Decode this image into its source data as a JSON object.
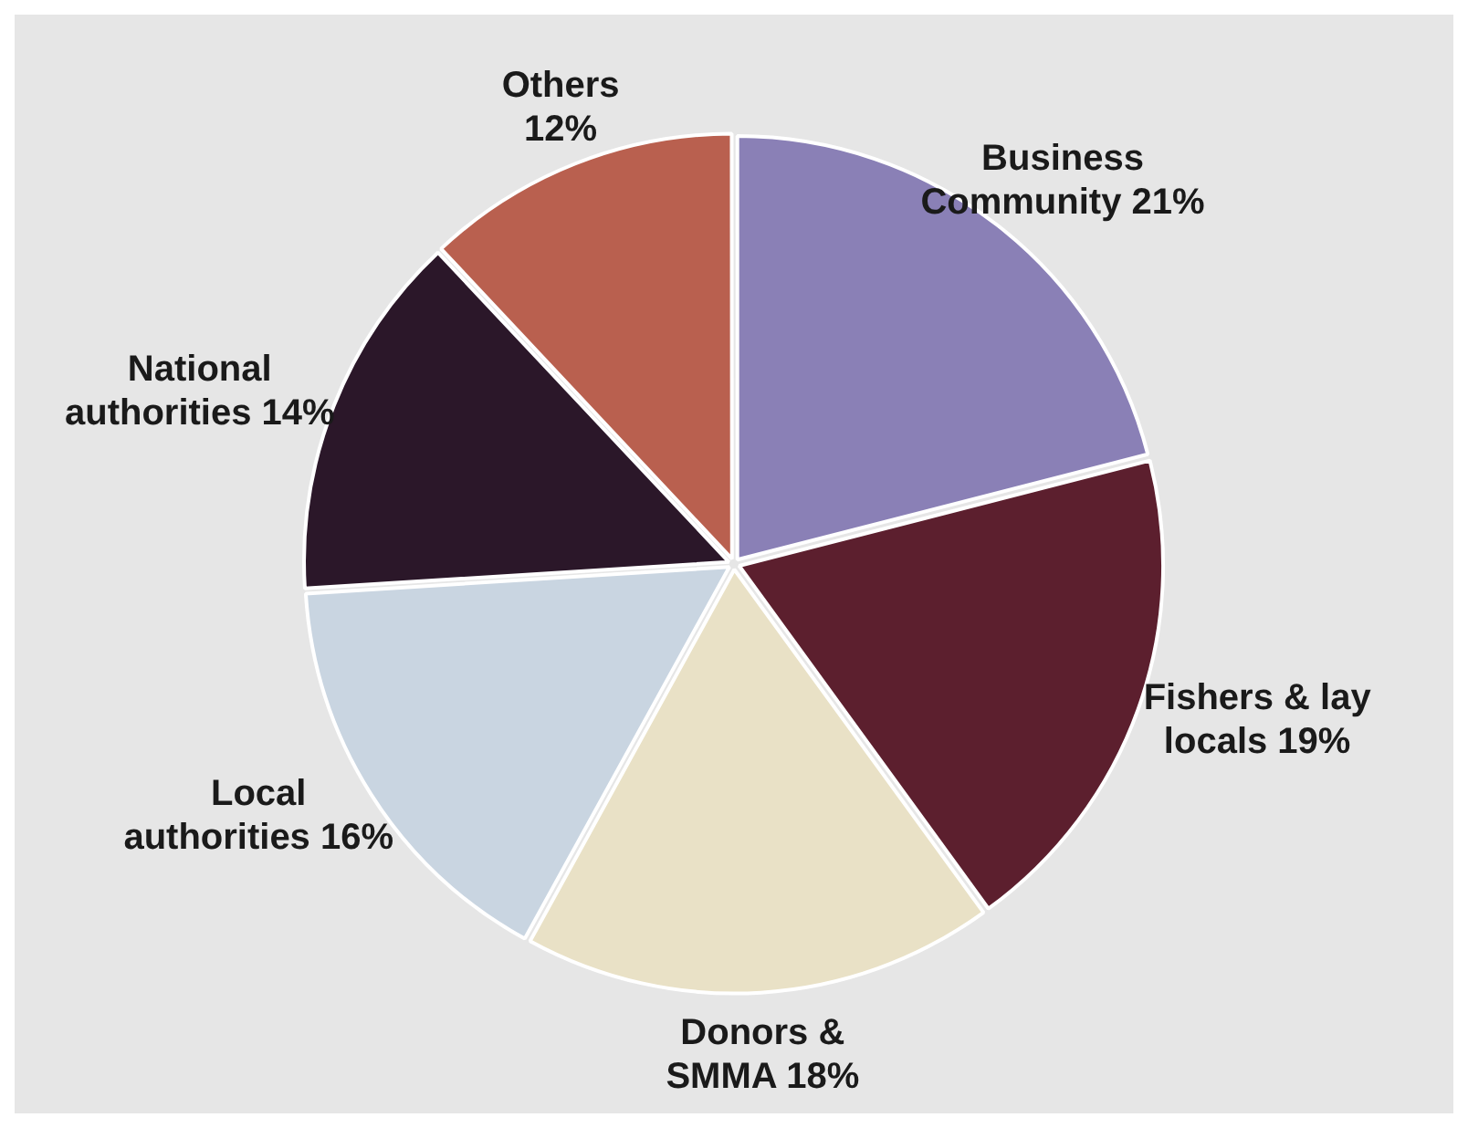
{
  "chart_data": {
    "type": "pie",
    "categories": [
      "Business Community",
      "Fishers & lay locals",
      "Donors & SMMA",
      "Local authorities",
      "National authorities",
      "Others"
    ],
    "values": [
      21,
      19,
      18,
      16,
      14,
      12
    ],
    "value_labels": [
      "21%",
      "19%",
      "18%",
      "16%",
      "14%",
      "12%"
    ],
    "colors": [
      "#8a80b6",
      "#5c1f2e",
      "#e9e1c6",
      "#c9d5e1",
      "#2b1729",
      "#b9604f"
    ],
    "legend": false
  }
}
